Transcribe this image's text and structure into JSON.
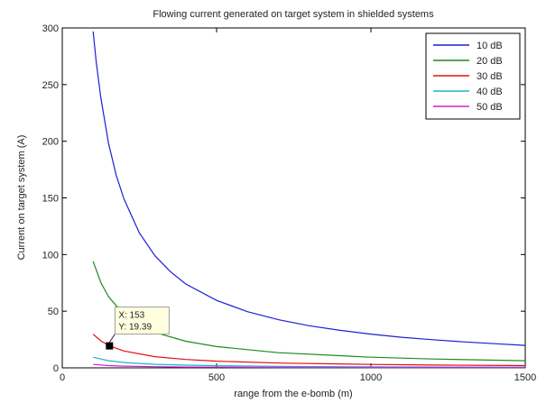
{
  "chart_data": {
    "type": "line",
    "title": "Flowing current generated on target system in shielded systems",
    "xlabel": "range from the e-bomb (m)",
    "ylabel": "Current on target system (A)",
    "xlim": [
      0,
      1500
    ],
    "ylim": [
      0,
      300
    ],
    "xticks": [
      0,
      500,
      1000,
      1500
    ],
    "yticks": [
      0,
      50,
      100,
      150,
      200,
      250,
      300
    ],
    "grid": false,
    "legend_position": "top-right",
    "series": [
      {
        "name": "10 dB",
        "color": "#1f1fd2",
        "x": [
          100,
          110,
          125,
          150,
          175,
          200,
          250,
          300,
          350,
          400,
          500,
          600,
          700,
          800,
          900,
          1000,
          1100,
          1200,
          1300,
          1400,
          1500
        ],
        "y": [
          297,
          270,
          238,
          198,
          170,
          149,
          119,
          99,
          85,
          74,
          59.5,
          49.6,
          42.5,
          37.2,
          33.1,
          29.8,
          27.0,
          24.8,
          22.9,
          21.3,
          19.8
        ]
      },
      {
        "name": "20 dB",
        "color": "#1e8a1e",
        "x": [
          100,
          125,
          150,
          200,
          300,
          400,
          500,
          700,
          1000,
          1200,
          1500
        ],
        "y": [
          94,
          75.2,
          62.7,
          47,
          31.3,
          23.5,
          18.8,
          13.4,
          9.4,
          7.8,
          6.3
        ]
      },
      {
        "name": "30 dB",
        "color": "#e01010",
        "x": [
          100,
          125,
          153,
          200,
          300,
          400,
          500,
          700,
          1000,
          1200,
          1500
        ],
        "y": [
          29.7,
          23.8,
          19.39,
          14.9,
          9.9,
          7.4,
          5.9,
          4.2,
          3.0,
          2.5,
          2.0
        ]
      },
      {
        "name": "40 dB",
        "color": "#1fb5c8",
        "x": [
          100,
          150,
          200,
          300,
          400,
          500,
          700,
          1000,
          1500
        ],
        "y": [
          9.4,
          6.3,
          4.7,
          3.1,
          2.4,
          1.9,
          1.3,
          0.9,
          0.6
        ]
      },
      {
        "name": "50 dB",
        "color": "#d020d0",
        "x": [
          100,
          150,
          200,
          300,
          400,
          500,
          700,
          1000,
          1500
        ],
        "y": [
          3.0,
          2.0,
          1.5,
          1.0,
          0.7,
          0.6,
          0.4,
          0.3,
          0.2
        ]
      }
    ],
    "datatip": {
      "x": 153,
      "y": 19.39,
      "x_text": "X: 153",
      "y_text": "Y: 19.39"
    }
  }
}
